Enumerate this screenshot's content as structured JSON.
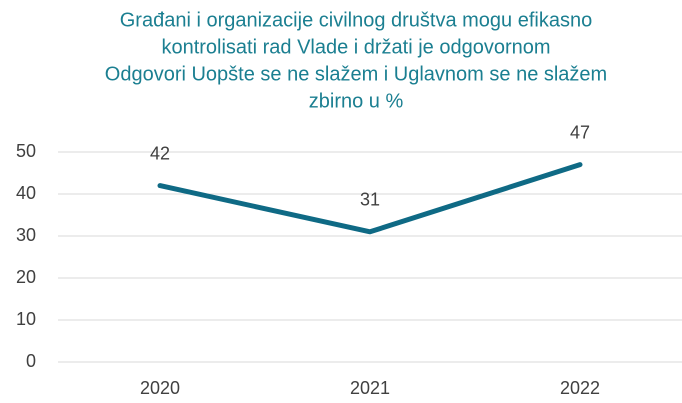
{
  "chart_data": {
    "type": "line",
    "title": [
      "Građani i organizacije civilnog društva mogu efikasno",
      "kontrolisati rad Vlade i držati je odgovornom"
    ],
    "subtitle": [
      "Odgovori Uopšte se ne slažem i Uglavnom se ne slažem",
      "zbirno u %"
    ],
    "categories": [
      "2020",
      "2021",
      "2022"
    ],
    "values": [
      42,
      31,
      47
    ],
    "color": "#0f6a85",
    "ylim": [
      0,
      50
    ],
    "yticks": [
      0,
      10,
      20,
      30,
      40,
      50
    ],
    "grid": true,
    "data_labels": true
  }
}
